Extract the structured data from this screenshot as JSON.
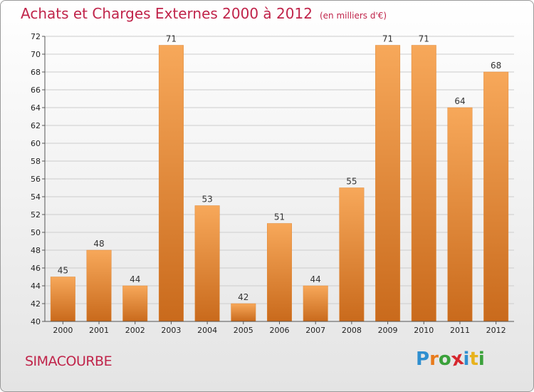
{
  "header": {
    "title": "Achats et Charges Externes 2000 à 2012",
    "unit": "(en milliers d'€)"
  },
  "footer": {
    "commune": "SIMACOURBE",
    "logo_letters": [
      "P",
      "r",
      "o",
      "x",
      "i",
      "t",
      "i"
    ],
    "logo_colors": [
      "#2f8fd0",
      "#e87b1c",
      "#3aa13a",
      "#d6272e",
      "#2f8fd0",
      "#e8b21c",
      "#3aa13a"
    ]
  },
  "colors": {
    "bar_top": "#f7a85a",
    "bar_bottom": "#c96a1c",
    "grid": "#cccccc",
    "title": "#c0244a"
  },
  "chart_data": {
    "type": "bar",
    "title": "Achats et Charges Externes 2000 à 2012",
    "subtitle": "(en milliers d'€)",
    "xlabel": "",
    "ylabel": "",
    "categories": [
      "2000",
      "2001",
      "2002",
      "2003",
      "2004",
      "2005",
      "2006",
      "2007",
      "2008",
      "2009",
      "2010",
      "2011",
      "2012"
    ],
    "values": [
      45,
      48,
      44,
      71,
      53,
      42,
      51,
      44,
      55,
      71,
      71,
      64,
      68
    ],
    "value_labels": [
      "45",
      "48",
      "44",
      "71",
      "53",
      "42",
      "51",
      "44",
      "55",
      "71",
      "71",
      "64",
      "68"
    ],
    "ylim": [
      40,
      72
    ],
    "yticks": [
      40,
      42,
      44,
      46,
      48,
      50,
      52,
      54,
      56,
      58,
      60,
      62,
      64,
      66,
      68,
      70,
      72
    ],
    "ytick_labels": [
      "40",
      "42",
      "44",
      "46",
      "48",
      "50",
      "52",
      "54",
      "56",
      "58",
      "60",
      "62",
      "64",
      "66",
      "68",
      "70",
      "72"
    ],
    "grid": true,
    "legend": "none"
  }
}
